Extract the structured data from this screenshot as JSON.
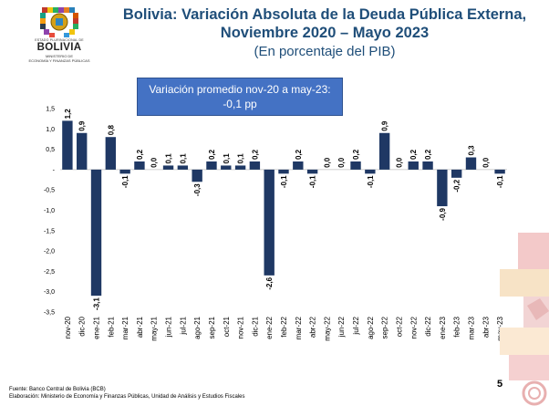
{
  "header": {
    "logo": {
      "top_text": "ESTADO PLURINACIONAL DE",
      "country": "BOLIVIA",
      "ministry_line1": "MINISTERIO DE",
      "ministry_line2": "ECONOMÍA Y FINANZAS PÚBLICAS"
    },
    "title_line1": "Bolivia: Variación Absoluta de la Deuda Pública Externa,",
    "title_line2": "Noviembre 2020 – Mayo 2023",
    "subtitle": "(En porcentaje del PIB)"
  },
  "callout": {
    "line1": "Variación promedio nov-20 a may-23:",
    "line2": "-0,1 pp"
  },
  "footer": {
    "source": "Fuente: Banco Central de Bolivia (BCB)",
    "elaboration": "Elaboración: Ministerio de Economía y Finanzas Públicas, Unidad de Análisis y Estudios Fiscales",
    "page_number": "5"
  },
  "colors": {
    "bar": "#1f3864",
    "title": "#1f4e79",
    "callout_bg": "#4472c4"
  },
  "chart_data": {
    "type": "bar",
    "categories": [
      "nov-20",
      "dic-20",
      "ene-21",
      "feb-21",
      "mar-21",
      "abr-21",
      "may-21",
      "jun-21",
      "jul-21",
      "ago-21",
      "sep-21",
      "oct-21",
      "nov-21",
      "dic-21",
      "ene-22",
      "feb-22",
      "mar-22",
      "abr-22",
      "may-22",
      "jun-22",
      "jul-22",
      "ago-22",
      "sep-22",
      "oct-22",
      "nov-22",
      "dic-22",
      "ene-23",
      "feb-23",
      "mar-23",
      "abr-23",
      "may-23"
    ],
    "values": [
      1.2,
      0.9,
      -3.1,
      0.8,
      -0.1,
      0.2,
      0.0,
      0.1,
      0.1,
      -0.3,
      0.2,
      0.1,
      0.1,
      0.2,
      -2.6,
      -0.1,
      0.2,
      -0.1,
      0.0,
      0.0,
      0.2,
      -0.1,
      0.9,
      0.0,
      0.2,
      0.2,
      -0.9,
      -0.2,
      0.3,
      0.0,
      -0.1
    ],
    "labels": [
      "1,2",
      "0,9",
      "-3,1",
      "0,8",
      "-0,1",
      "0,2",
      "0,0",
      "0,1",
      "0,1",
      "-0,3",
      "0,2",
      "0,1",
      "0,1",
      "0,2",
      "-2,6",
      "-0,1",
      "0,2",
      "-0,1",
      "0,0",
      "0,0",
      "0,2",
      "-0,1",
      "0,9",
      "0,0",
      "0,2",
      "0,2",
      "-0,9",
      "-0,2",
      "0,3",
      "0,0",
      "-0,1"
    ],
    "yticks": [
      1.5,
      1.0,
      0.5,
      0,
      -0.5,
      -1.0,
      -1.5,
      -2.0,
      -2.5,
      -3.0,
      -3.5
    ],
    "ytick_labels": [
      "1,5",
      "1,0",
      "0,5",
      "-",
      "-0,5",
      "-1,0",
      "-1,5",
      "-2,0",
      "-2,5",
      "-3,0",
      "-3,5"
    ],
    "ylim": [
      -3.5,
      1.5
    ],
    "grid": false,
    "legend": "none"
  }
}
